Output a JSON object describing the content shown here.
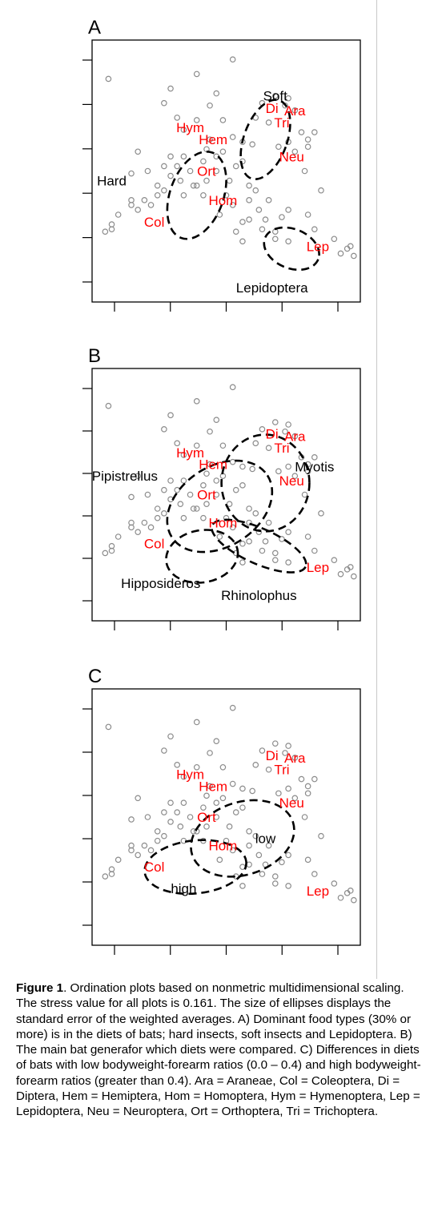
{
  "chart_data": [
    {
      "type": "scatter",
      "panel_label": "A",
      "xlabel": "",
      "ylabel": "",
      "grid": false,
      "taxa_color": "#ff0000",
      "point_color": "#8c8c8c",
      "group_labels": [
        {
          "text": "Soft",
          "x": 3.7,
          "y": 3.95
        },
        {
          "text": "Hard",
          "x": 1.2,
          "y": 2.2
        },
        {
          "text": "Lepidoptera",
          "x": 3.65,
          "y": 0
        },
        {
          "text": "",
          "x": 0,
          "y": 0
        }
      ],
      "ellipses": [
        {
          "name": "Hard",
          "cx": 2.5,
          "cy": 2.0,
          "rx": 0.68,
          "ry": 1.04,
          "rot": 20
        },
        {
          "name": "Soft",
          "cx": 3.55,
          "cy": 3.15,
          "rx": 0.55,
          "ry": 0.95,
          "rot": 20
        },
        {
          "name": "Lepidoptera",
          "cx": 3.95,
          "cy": 0.9,
          "rx": 0.73,
          "ry": 0.45,
          "rot": 22
        }
      ]
    },
    {
      "type": "scatter",
      "panel_label": "B",
      "xlabel": "",
      "ylabel": "",
      "grid": false,
      "taxa_color": "#ff0000",
      "point_color": "#8c8c8c",
      "group_labels": [
        {
          "text": "Myotis",
          "x": 4.3,
          "y": 3.0
        },
        {
          "text": "Pipistrellus",
          "x": 1.4,
          "y": 2.8
        },
        {
          "text": "Hipposideros",
          "x": 1.95,
          "y": 0.5
        },
        {
          "text": "Rhinolophus",
          "x": 3.45,
          "y": 0.25
        }
      ],
      "ellipses": [
        {
          "name": "Myotis",
          "cx": 3.55,
          "cy": 2.75,
          "rx": 1.12,
          "ry": 1.15,
          "rot": 0
        },
        {
          "name": "Pipistrellus",
          "cx": 2.85,
          "cy": 2.25,
          "rx": 1.45,
          "ry": 0.95,
          "rot": -33
        },
        {
          "name": "Hipposideros",
          "cx": 2.58,
          "cy": 1.18,
          "rx": 0.92,
          "ry": 0.62,
          "rot": -10
        },
        {
          "name": "Rhinolophus",
          "cx": 3.45,
          "cy": 1.4,
          "rx": 1.3,
          "ry": 0.42,
          "rot": 24
        }
      ]
    },
    {
      "type": "scatter",
      "panel_label": "C",
      "xlabel": "",
      "ylabel": "",
      "grid": false,
      "taxa_color": "#ff0000",
      "point_color": "#8c8c8c",
      "group_labels": [
        {
          "text": "low",
          "x": 3.55,
          "y": 1.95
        },
        {
          "text": "high",
          "x": 2.3,
          "y": 0.9
        },
        {
          "text": "",
          "x": 0,
          "y": 0
        },
        {
          "text": "",
          "x": 0,
          "y": 0
        }
      ],
      "ellipses": [
        {
          "name": "low",
          "cx": 3.2,
          "cy": 2.05,
          "rx": 1.35,
          "ry": 0.85,
          "rot": -18
        },
        {
          "name": "high",
          "cx": 2.48,
          "cy": 1.45,
          "rx": 1.3,
          "ry": 0.62,
          "rot": -6
        }
      ]
    }
  ],
  "shared_taxa": [
    {
      "label": "Hym",
      "x": 2.4,
      "y": 3.3
    },
    {
      "label": "Hem",
      "x": 2.75,
      "y": 3.05
    },
    {
      "label": "Ort",
      "x": 2.65,
      "y": 2.4
    },
    {
      "label": "Hom",
      "x": 2.9,
      "y": 1.8
    },
    {
      "label": "Col",
      "x": 1.85,
      "y": 1.35
    },
    {
      "label": "Di",
      "x": 3.65,
      "y": 3.7
    },
    {
      "label": "Ara",
      "x": 4.0,
      "y": 3.65
    },
    {
      "label": "Tri",
      "x": 3.8,
      "y": 3.4
    },
    {
      "label": "Neu",
      "x": 3.95,
      "y": 2.7
    },
    {
      "label": "Lep",
      "x": 4.35,
      "y": 0.85
    }
  ],
  "shared_points": [
    [
      1.2,
      1.3
    ],
    [
      1.2,
      1.4
    ],
    [
      1.3,
      1.6
    ],
    [
      1.5,
      1.8
    ],
    [
      1.6,
      1.7
    ],
    [
      1.5,
      1.9
    ],
    [
      1.7,
      1.9
    ],
    [
      1.8,
      1.8
    ],
    [
      1.9,
      2.0
    ],
    [
      2.0,
      2.1
    ],
    [
      1.75,
      2.5
    ],
    [
      1.5,
      2.45
    ],
    [
      2.0,
      2.6
    ],
    [
      1.9,
      2.2
    ],
    [
      2.1,
      2.4
    ],
    [
      2.2,
      2.6
    ],
    [
      2.25,
      2.3
    ],
    [
      2.3,
      2.8
    ],
    [
      2.1,
      2.8
    ],
    [
      1.6,
      2.9
    ],
    [
      2.4,
      2.5
    ],
    [
      2.45,
      2.2
    ],
    [
      2.3,
      2.0
    ],
    [
      2.5,
      2.2
    ],
    [
      2.6,
      2.0
    ],
    [
      2.65,
      2.3
    ],
    [
      2.8,
      2.5
    ],
    [
      2.8,
      2.8
    ],
    [
      2.6,
      2.7
    ],
    [
      2.9,
      2.9
    ],
    [
      2.95,
      2.0
    ],
    [
      3.05,
      1.8
    ],
    [
      2.85,
      1.6
    ],
    [
      3.0,
      2.3
    ],
    [
      3.2,
      2.7
    ],
    [
      3.1,
      2.6
    ],
    [
      3.3,
      2.2
    ],
    [
      3.45,
      1.7
    ],
    [
      3.3,
      1.9
    ],
    [
      3.6,
      1.9
    ],
    [
      3.55,
      1.5
    ],
    [
      3.9,
      1.7
    ],
    [
      3.3,
      1.5
    ],
    [
      3.1,
      1.25
    ],
    [
      3.5,
      1.3
    ],
    [
      3.7,
      1.25
    ],
    [
      3.8,
      1.55
    ],
    [
      4.2,
      1.6
    ],
    [
      4.3,
      1.3
    ],
    [
      4.6,
      1.1
    ],
    [
      4.8,
      0.9
    ],
    [
      4.85,
      0.95
    ],
    [
      4.7,
      0.8
    ],
    [
      4.9,
      0.75
    ],
    [
      2.1,
      4.2
    ],
    [
      2.2,
      3.6
    ],
    [
      2.8,
      4.1
    ],
    [
      3.2,
      3.1
    ],
    [
      3.4,
      3.6
    ],
    [
      3.5,
      3.9
    ],
    [
      3.6,
      3.5
    ],
    [
      3.7,
      4.05
    ],
    [
      3.85,
      3.85
    ],
    [
      3.9,
      4.0
    ],
    [
      4.0,
      3.75
    ],
    [
      4.1,
      3.3
    ],
    [
      4.2,
      3.15
    ],
    [
      4.3,
      3.3
    ],
    [
      4.2,
      3.0
    ],
    [
      4.15,
      2.5
    ],
    [
      4.4,
      2.1
    ],
    [
      3.9,
      3.1
    ],
    [
      3.75,
      3.0
    ],
    [
      4.0,
      2.9
    ],
    [
      3.35,
      3.05
    ],
    [
      3.05,
      3.2
    ],
    [
      2.9,
      3.55
    ],
    [
      2.7,
      3.15
    ],
    [
      2.65,
      2.95
    ],
    [
      3.2,
      1.05
    ],
    [
      3.7,
      1.1
    ],
    [
      2.5,
      4.5
    ],
    [
      2.0,
      3.9
    ],
    [
      2.3,
      3.35
    ],
    [
      2.7,
      3.85
    ],
    [
      3.05,
      4.8
    ],
    [
      1.15,
      4.4
    ],
    [
      3.4,
      2.1
    ],
    [
      3.9,
      1.05
    ],
    [
      3.2,
      1.45
    ],
    [
      1.1,
      1.25
    ],
    [
      2.5,
      3.55
    ]
  ],
  "caption": {
    "figure_label": "Figure 1",
    "text": ". Ordination plots based on nonmetric multidimensional scaling.  The stress value for all plots is 0.161.  The size of ellipses displays the standard error of the weighted averages.  A) Dominant food types (30% or more) is in the diets of bats; hard insects, soft insects and Lepidoptera.  B) The main bat generafor which diets were compared.  C) Differences in diets of bats with low bodyweight-forearm ratios (0.0 – 0.4) and high bodyweight-forearm ratios (greater than 0.4).  Ara = Araneae, Col = Coleoptera, Di = Diptera, Hem = Hemiptera, Hom = Homoptera, Hym = Hymenoptera, Lep = Lepidoptera, Neu = Neuroptera, Ort = Orthoptera, Tri = Trichoptera."
  }
}
